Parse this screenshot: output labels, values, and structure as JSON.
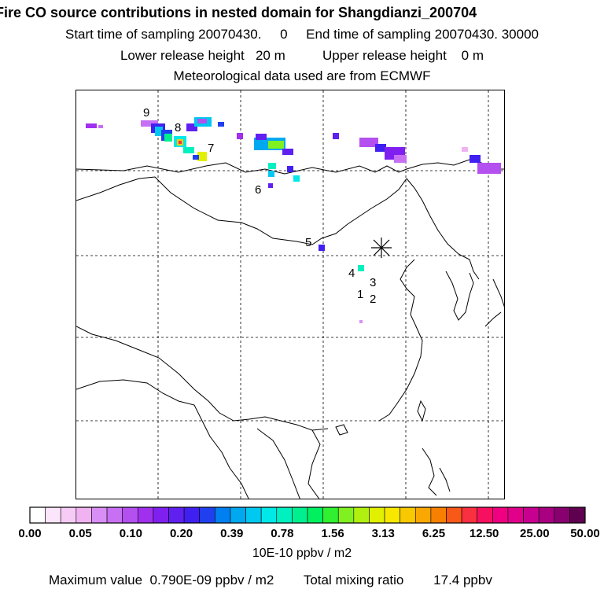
{
  "header": {
    "title": "Fire CO source contributions in nested domain for Shangdianzi_200704",
    "line2": "Start time of sampling 20070430.     0     End time of sampling 20070430. 30000",
    "line3": "Lower release height   20 m          Upper release height    0 m",
    "line4": "Meteorological data used are from ECMWF"
  },
  "map": {
    "station_marker": "asterisk",
    "gridlines": "dashed",
    "source_labels": [
      "1",
      "2",
      "3",
      "4",
      "5",
      "6",
      "7",
      "8",
      "9"
    ]
  },
  "colorbar": {
    "tick_labels": [
      "0.00",
      "0.05",
      "0.10",
      "0.20",
      "0.39",
      "0.78",
      "1.56",
      "3.13",
      "6.25",
      "12.50",
      "25.00",
      "50.00"
    ],
    "colors": [
      "#ffffff",
      "#fbe5fb",
      "#f6ccf6",
      "#f1b2f1",
      "#d98ef5",
      "#c870f3",
      "#b450f0",
      "#a030ee",
      "#8020f0",
      "#6020f0",
      "#4020f0",
      "#2040f0",
      "#0080f0",
      "#00a8f0",
      "#00c8f0",
      "#00e8e8",
      "#00f0c0",
      "#00f090",
      "#00f060",
      "#30f030",
      "#80f020",
      "#b0f010",
      "#e0f000",
      "#f8e800",
      "#f8c800",
      "#f8a800",
      "#f88000",
      "#f85818",
      "#f83040",
      "#f81060",
      "#f00080",
      "#e0008a",
      "#c80090",
      "#a80080",
      "#880070",
      "#600050"
    ],
    "units": "10E-10 ppbv / m2"
  },
  "footer": {
    "max_label": "Maximum value",
    "max_value": "0.790E-09 ppbv / m2",
    "total_label": "Total mixing ratio",
    "total_value": "17.4 ppbv"
  }
}
